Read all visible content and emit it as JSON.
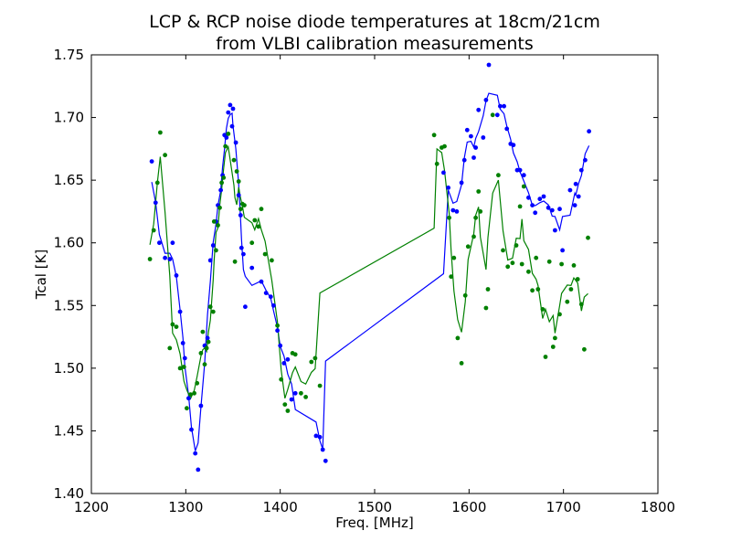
{
  "chart_data": {
    "type": "scatter",
    "title": [
      "LCP & RCP noise diode temperatures at 18cm/21cm",
      "from VLBI calibration measurements"
    ],
    "xlabel": "Freq. [MHz]",
    "ylabel": "Tcal [K]",
    "xlim": [
      1200,
      1800
    ],
    "ylim": [
      1.4,
      1.75
    ],
    "xticks": [
      1200,
      1300,
      1400,
      1500,
      1600,
      1700,
      1800
    ],
    "xtick_labels": [
      "1200",
      "1300",
      "1400",
      "1500",
      "1600",
      "1700",
      "1800"
    ],
    "yticks": [
      1.4,
      1.45,
      1.5,
      1.55,
      1.6,
      1.65,
      1.7,
      1.75
    ],
    "ytick_labels": [
      "1.40",
      "1.45",
      "1.50",
      "1.55",
      "1.60",
      "1.65",
      "1.70",
      "1.75"
    ],
    "grid": false,
    "series": [
      {
        "color": "#0000ff",
        "points": [
          [
            1264,
            1.665
          ],
          [
            1268,
            1.632
          ],
          [
            1272,
            1.6
          ],
          [
            1278,
            1.588
          ],
          [
            1283,
            1.587
          ],
          [
            1286,
            1.6
          ],
          [
            1290,
            1.574
          ],
          [
            1294,
            1.545
          ],
          [
            1297,
            1.52
          ],
          [
            1299,
            1.508
          ],
          [
            1303,
            1.476
          ],
          [
            1306,
            1.451
          ],
          [
            1310,
            1.432
          ],
          [
            1313,
            1.419
          ],
          [
            1316,
            1.47
          ],
          [
            1320,
            1.518
          ],
          [
            1323,
            1.524
          ],
          [
            1326,
            1.586
          ],
          [
            1329,
            1.598
          ],
          [
            1332,
            1.617
          ],
          [
            1334,
            1.63
          ],
          [
            1337,
            1.642
          ],
          [
            1339,
            1.654
          ],
          [
            1341,
            1.686
          ],
          [
            1343,
            1.684
          ],
          [
            1345,
            1.704
          ],
          [
            1347,
            1.71
          ],
          [
            1349,
            1.693
          ],
          [
            1350,
            1.707
          ],
          [
            1353,
            1.68
          ],
          [
            1356,
            1.638
          ],
          [
            1358,
            1.622
          ],
          [
            1359,
            1.596
          ],
          [
            1361,
            1.591
          ],
          [
            1363,
            1.549
          ],
          [
            1370,
            1.58
          ],
          [
            1380,
            1.569
          ],
          [
            1385,
            1.56
          ],
          [
            1390,
            1.557
          ],
          [
            1393,
            1.55
          ],
          [
            1397,
            1.53
          ],
          [
            1400,
            1.518
          ],
          [
            1404,
            1.504
          ],
          [
            1408,
            1.507
          ],
          [
            1412,
            1.475
          ],
          [
            1416,
            1.48
          ],
          [
            1438,
            1.446
          ],
          [
            1442,
            1.445
          ],
          [
            1445,
            1.435
          ],
          [
            1448,
            1.426
          ],
          [
            1573,
            1.656
          ],
          [
            1578,
            1.644
          ],
          [
            1583,
            1.626
          ],
          [
            1587,
            1.625
          ],
          [
            1592,
            1.648
          ],
          [
            1595,
            1.666
          ],
          [
            1598,
            1.69
          ],
          [
            1602,
            1.685
          ],
          [
            1605,
            1.668
          ],
          [
            1607,
            1.676
          ],
          [
            1610,
            1.706
          ],
          [
            1615,
            1.684
          ],
          [
            1618,
            1.714
          ],
          [
            1621,
            1.742
          ],
          [
            1630,
            1.702
          ],
          [
            1633,
            1.709
          ],
          [
            1637,
            1.709
          ],
          [
            1640,
            1.691
          ],
          [
            1644,
            1.679
          ],
          [
            1647,
            1.678
          ],
          [
            1651,
            1.658
          ],
          [
            1654,
            1.658
          ],
          [
            1658,
            1.654
          ],
          [
            1663,
            1.636
          ],
          [
            1667,
            1.63
          ],
          [
            1670,
            1.624
          ],
          [
            1675,
            1.635
          ],
          [
            1679,
            1.637
          ],
          [
            1684,
            1.628
          ],
          [
            1688,
            1.626
          ],
          [
            1691,
            1.61
          ],
          [
            1696,
            1.627
          ],
          [
            1699,
            1.594
          ],
          [
            1707,
            1.642
          ],
          [
            1712,
            1.63
          ],
          [
            1713,
            1.647
          ],
          [
            1716,
            1.637
          ],
          [
            1719,
            1.658
          ],
          [
            1723,
            1.666
          ],
          [
            1727,
            1.689
          ]
        ]
      },
      {
        "color": "#008000",
        "points": [
          [
            1262,
            1.587
          ],
          [
            1266,
            1.61
          ],
          [
            1270,
            1.648
          ],
          [
            1273,
            1.688
          ],
          [
            1278,
            1.67
          ],
          [
            1283,
            1.516
          ],
          [
            1286,
            1.535
          ],
          [
            1290,
            1.533
          ],
          [
            1294,
            1.5
          ],
          [
            1298,
            1.501
          ],
          [
            1301,
            1.468
          ],
          [
            1305,
            1.479
          ],
          [
            1309,
            1.48
          ],
          [
            1312,
            1.488
          ],
          [
            1316,
            1.512
          ],
          [
            1318,
            1.529
          ],
          [
            1320,
            1.503
          ],
          [
            1322,
            1.516
          ],
          [
            1324,
            1.521
          ],
          [
            1326,
            1.549
          ],
          [
            1329,
            1.545
          ],
          [
            1330,
            1.617
          ],
          [
            1332,
            1.594
          ],
          [
            1334,
            1.614
          ],
          [
            1336,
            1.628
          ],
          [
            1338,
            1.648
          ],
          [
            1340,
            1.652
          ],
          [
            1342,
            1.677
          ],
          [
            1345,
            1.687
          ],
          [
            1351,
            1.666
          ],
          [
            1352,
            1.585
          ],
          [
            1354,
            1.657
          ],
          [
            1356,
            1.649
          ],
          [
            1358,
            1.627
          ],
          [
            1360,
            1.631
          ],
          [
            1362,
            1.63
          ],
          [
            1370,
            1.6
          ],
          [
            1373,
            1.618
          ],
          [
            1377,
            1.613
          ],
          [
            1380,
            1.627
          ],
          [
            1384,
            1.591
          ],
          [
            1391,
            1.586
          ],
          [
            1397,
            1.534
          ],
          [
            1401,
            1.491
          ],
          [
            1405,
            1.471
          ],
          [
            1408,
            1.466
          ],
          [
            1413,
            1.512
          ],
          [
            1416,
            1.511
          ],
          [
            1422,
            1.48
          ],
          [
            1427,
            1.477
          ],
          [
            1433,
            1.505
          ],
          [
            1437,
            1.508
          ],
          [
            1442,
            1.486
          ],
          [
            1563,
            1.686
          ],
          [
            1566,
            1.663
          ],
          [
            1571,
            1.676
          ],
          [
            1574,
            1.677
          ],
          [
            1579,
            1.62
          ],
          [
            1581,
            1.573
          ],
          [
            1584,
            1.588
          ],
          [
            1588,
            1.524
          ],
          [
            1592,
            1.504
          ],
          [
            1596,
            1.558
          ],
          [
            1599,
            1.597
          ],
          [
            1605,
            1.605
          ],
          [
            1607,
            1.62
          ],
          [
            1610,
            1.641
          ],
          [
            1612,
            1.625
          ],
          [
            1618,
            1.548
          ],
          [
            1620,
            1.563
          ],
          [
            1625,
            1.702
          ],
          [
            1631,
            1.654
          ],
          [
            1636,
            1.594
          ],
          [
            1641,
            1.581
          ],
          [
            1646,
            1.584
          ],
          [
            1650,
            1.598
          ],
          [
            1654,
            1.629
          ],
          [
            1656,
            1.583
          ],
          [
            1658,
            1.645
          ],
          [
            1663,
            1.577
          ],
          [
            1667,
            1.562
          ],
          [
            1671,
            1.588
          ],
          [
            1673,
            1.563
          ],
          [
            1678,
            1.547
          ],
          [
            1681,
            1.509
          ],
          [
            1685,
            1.585
          ],
          [
            1689,
            1.517
          ],
          [
            1691,
            1.524
          ],
          [
            1696,
            1.543
          ],
          [
            1698,
            1.583
          ],
          [
            1704,
            1.553
          ],
          [
            1708,
            1.563
          ],
          [
            1711,
            1.582
          ],
          [
            1715,
            1.571
          ],
          [
            1719,
            1.551
          ],
          [
            1722,
            1.515
          ],
          [
            1726,
            1.604
          ]
        ]
      }
    ]
  }
}
